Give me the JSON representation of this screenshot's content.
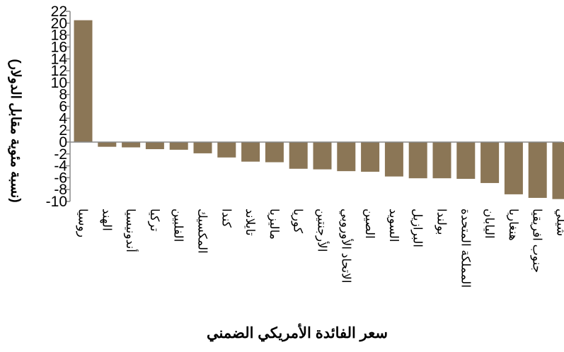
{
  "chart_data": {
    "type": "bar",
    "title": "",
    "xlabel": "سعر الفائدة الأمريكي الضمني",
    "ylabel": "(نسبة مئوية مقابل الدولار)",
    "ylim": [
      -10,
      22
    ],
    "yticks": [
      -10,
      -8,
      -6,
      -4,
      -2,
      0,
      2,
      4,
      6,
      8,
      10,
      12,
      14,
      16,
      18,
      20,
      22
    ],
    "bar_color": "#8B7656",
    "grid": false,
    "legend": "none",
    "categories": [
      "روسيا",
      "الهند",
      "أندونيسيا",
      "تركيا",
      "الفلبين",
      "المكسيك",
      "كندا",
      "تايلاند",
      "ماليزيا",
      "كوريا",
      "الأرجنتين",
      "الاتحاد الأوروبي",
      "الصين",
      "السويد",
      "البرازيل",
      "بولندا",
      "المملكة المتحدة",
      "اليابان",
      "هنغاريا",
      "جنوب افريقيا",
      "شيلي"
    ],
    "values": [
      20.5,
      -0.8,
      -0.9,
      -1.2,
      -1.3,
      -1.9,
      -2.6,
      -3.3,
      -3.4,
      -4.5,
      -4.6,
      -4.9,
      -5.0,
      -5.8,
      -6.1,
      -6.1,
      -6.2,
      -6.9,
      -8.8,
      -9.4,
      -9.6
    ]
  }
}
